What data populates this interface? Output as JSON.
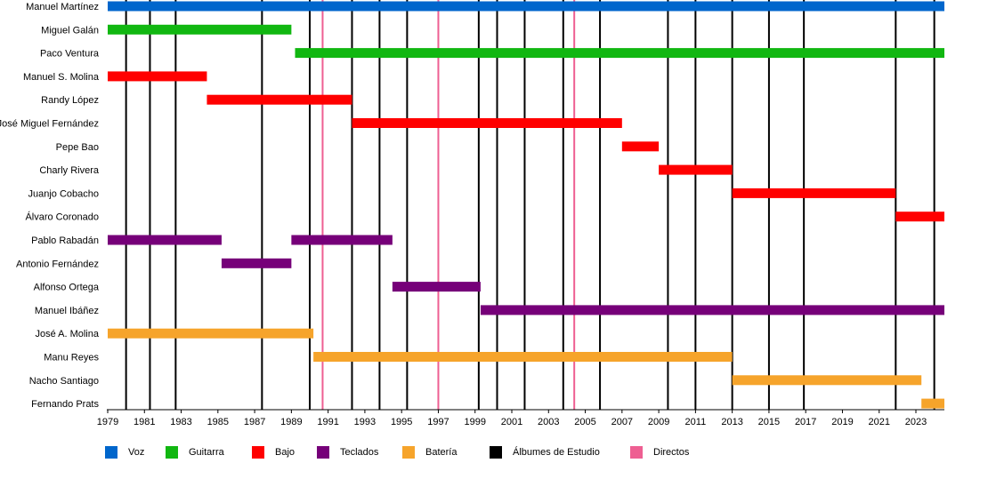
{
  "chart_data": {
    "type": "timeline",
    "title": "",
    "xlabel": "",
    "ylabel": "",
    "xlim": [
      1979,
      2024.55
    ],
    "x_ticks": [
      "1979",
      "1981",
      "1983",
      "1985",
      "1987",
      "1989",
      "1991",
      "1993",
      "1995",
      "1997",
      "1999",
      "2001",
      "2003",
      "2005",
      "2007",
      "2009",
      "2011",
      "2013",
      "2015",
      "2017",
      "2019",
      "2021",
      "2023"
    ],
    "categories": [
      {
        "key": "voz",
        "label": "Voz",
        "color": "#0066cc"
      },
      {
        "key": "guitarra",
        "label": "Guitarra",
        "color": "#11b711"
      },
      {
        "key": "bajo",
        "label": "Bajo",
        "color": "#ff0000"
      },
      {
        "key": "teclados",
        "label": "Teclados",
        "color": "#760079"
      },
      {
        "key": "bateria",
        "label": "Batería",
        "color": "#f6a42b"
      },
      {
        "key": "albumes",
        "label": "Álbumes de Estudio",
        "color": "#000000"
      },
      {
        "key": "directos",
        "label": "Directos",
        "color": "#ee5f92"
      }
    ],
    "members": [
      {
        "name": "Manuel Martínez",
        "role": "voz",
        "periods": [
          [
            1979,
            2024.55
          ]
        ]
      },
      {
        "name": "Miguel Galán",
        "role": "guitarra",
        "periods": [
          [
            1979,
            1989
          ]
        ]
      },
      {
        "name": "Paco Ventura",
        "role": "guitarra",
        "periods": [
          [
            1989.2,
            2024.55
          ]
        ]
      },
      {
        "name": "Manuel S. Molina",
        "role": "bajo",
        "periods": [
          [
            1979,
            1984.4
          ]
        ]
      },
      {
        "name": "Randy López",
        "role": "bajo",
        "periods": [
          [
            1984.4,
            1992.3
          ]
        ]
      },
      {
        "name": "José Miguel Fernández",
        "role": "bajo",
        "periods": [
          [
            1992.3,
            2007
          ]
        ]
      },
      {
        "name": "Pepe Bao",
        "role": "bajo",
        "periods": [
          [
            2007,
            2009
          ]
        ]
      },
      {
        "name": "Charly Rivera",
        "role": "bajo",
        "periods": [
          [
            2009,
            2013
          ]
        ]
      },
      {
        "name": "Juanjo Cobacho",
        "role": "bajo",
        "periods": [
          [
            2013,
            2021.9
          ]
        ]
      },
      {
        "name": "Álvaro Coronado",
        "role": "bajo",
        "periods": [
          [
            2021.9,
            2024.55
          ]
        ]
      },
      {
        "name": "Pablo Rabadán",
        "role": "teclados",
        "periods": [
          [
            1979,
            1985.2
          ],
          [
            1989,
            1994.5
          ]
        ]
      },
      {
        "name": "Antonio Fernández",
        "role": "teclados",
        "periods": [
          [
            1985.2,
            1989
          ]
        ]
      },
      {
        "name": "Alfonso Ortega",
        "role": "teclados",
        "periods": [
          [
            1994.5,
            1999.3
          ]
        ]
      },
      {
        "name": "Manuel Ibáñez",
        "role": "teclados",
        "periods": [
          [
            1999.3,
            2024.55
          ]
        ]
      },
      {
        "name": "José A. Molina",
        "role": "bateria",
        "periods": [
          [
            1979,
            1990.2
          ]
        ]
      },
      {
        "name": "Manu Reyes",
        "role": "bateria",
        "periods": [
          [
            1990.2,
            2013
          ]
        ]
      },
      {
        "name": "Nacho Santiago",
        "role": "bateria",
        "periods": [
          [
            2013,
            2023.3
          ]
        ]
      },
      {
        "name": "Fernando Prats",
        "role": "bateria",
        "periods": [
          [
            2023.3,
            2024.55
          ]
        ]
      }
    ],
    "studio_albums": [
      1980,
      1981.3,
      1982.7,
      1987.4,
      1990,
      1992.3,
      1993.8,
      1995.3,
      1999.2,
      2000.2,
      2001.7,
      2003.8,
      2005.8,
      2009.5,
      2011,
      2013,
      2015,
      2016.9,
      2021.9,
      2024
    ],
    "live_albums": [
      1990.7,
      1997,
      2004.4
    ]
  }
}
